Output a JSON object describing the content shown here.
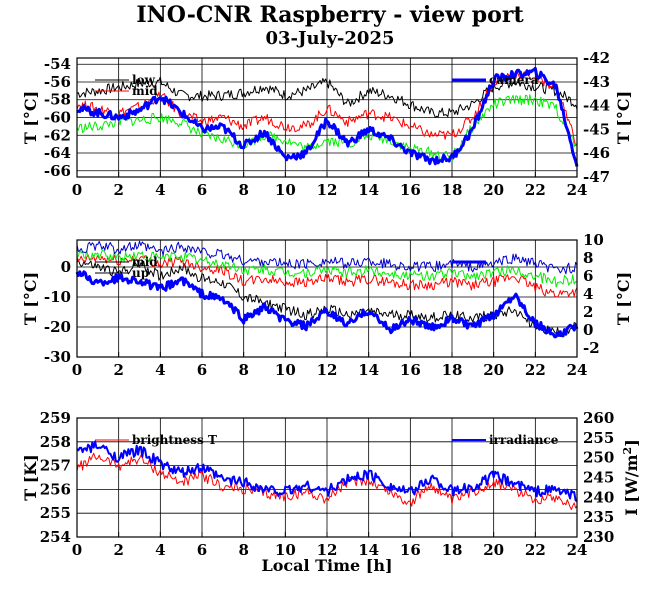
{
  "title": "INO-CNR Raspberry - view port",
  "subtitle": "03-July-2025",
  "chart_data": [
    {
      "type": "line",
      "x": [
        0,
        1,
        2,
        3,
        4,
        5,
        6,
        7,
        8,
        9,
        10,
        11,
        12,
        13,
        14,
        15,
        16,
        17,
        18,
        19,
        20,
        21,
        22,
        23,
        24
      ],
      "xlim": [
        0,
        24
      ],
      "xticks": [
        0,
        2,
        4,
        6,
        8,
        10,
        12,
        14,
        16,
        18,
        20,
        22,
        24
      ],
      "ylabel": "T [°C]",
      "ylim": [
        -66.7,
        -53.3
      ],
      "yticks": [
        -54,
        -56,
        -58,
        -60,
        -62,
        -64,
        -66
      ],
      "y2label": "T [°C]",
      "y2lim": [
        -47,
        -42
      ],
      "y2ticks": [
        -42,
        -43,
        -44,
        -45,
        -46,
        -47
      ],
      "grid": true,
      "legend_left": [
        "low",
        "mid"
      ],
      "legend_right": [
        "camera"
      ],
      "series": [
        {
          "name": "low",
          "axis": "left",
          "color": "#000000",
          "width": 1,
          "values": [
            -57.3,
            -57.0,
            -56.6,
            -56.2,
            -56.0,
            -57.5,
            -57.6,
            -57.5,
            -57.2,
            -56.5,
            -57.5,
            -57.0,
            -56.0,
            -58.5,
            -57.0,
            -57.5,
            -58.5,
            -59.5,
            -59.5,
            -58.5,
            -56.5,
            -56.0,
            -56.5,
            -57.0,
            -58.5
          ]
        },
        {
          "name": "mid",
          "axis": "left",
          "color": "#ff0000",
          "width": 1,
          "values": [
            -58.5,
            -59.0,
            -59.5,
            -58.8,
            -57.5,
            -59.5,
            -60.5,
            -60.0,
            -61.0,
            -60.0,
            -61.0,
            -61.0,
            -59.0,
            -60.5,
            -59.5,
            -60.0,
            -61.0,
            -62.0,
            -62.0,
            -60.0,
            -56.0,
            -55.0,
            -55.5,
            -56.5,
            -63.0
          ]
        },
        {
          "name": "",
          "axis": "left",
          "color": "#00ee00",
          "width": 1,
          "values": [
            -61.2,
            -61.0,
            -60.5,
            -60.3,
            -60.0,
            -60.5,
            -62.0,
            -62.5,
            -63.0,
            -62.0,
            -62.5,
            -63.5,
            -62.5,
            -63.0,
            -62.0,
            -62.5,
            -63.5,
            -64.0,
            -64.5,
            -61.0,
            -58.5,
            -58.0,
            -58.0,
            -59.0,
            -63.5
          ]
        },
        {
          "name": "camera",
          "axis": "right",
          "color": "#0000ff",
          "width": 3,
          "values": [
            -44.1,
            -44.3,
            -44.5,
            -44.2,
            -43.6,
            -44.3,
            -45.0,
            -44.9,
            -45.7,
            -45.1,
            -46.2,
            -46.0,
            -44.6,
            -45.6,
            -45.0,
            -45.4,
            -46.0,
            -46.3,
            -46.2,
            -45.0,
            -42.9,
            -42.7,
            -42.6,
            -43.2,
            -46.5
          ]
        }
      ]
    },
    {
      "type": "line",
      "x": [
        0,
        1,
        2,
        3,
        4,
        5,
        6,
        7,
        8,
        9,
        10,
        11,
        12,
        13,
        14,
        15,
        16,
        17,
        18,
        19,
        20,
        21,
        22,
        23,
        24
      ],
      "xlim": [
        0,
        24
      ],
      "xticks": [
        0,
        2,
        4,
        6,
        8,
        10,
        12,
        14,
        16,
        18,
        20,
        22,
        24
      ],
      "ylabel": "T [°C]",
      "ylim": [
        -30,
        9
      ],
      "yticks": [
        0,
        -10,
        -20,
        -30
      ],
      "y2label": "T [°C]",
      "y2lim": [
        -3,
        10
      ],
      "y2ticks": [
        10,
        8,
        6,
        4,
        2,
        0,
        -2
      ],
      "grid": true,
      "legend_left": [
        "mid",
        "up"
      ],
      "legend_right": [
        ""
      ],
      "series": [
        {
          "name": "up",
          "axis": "left",
          "color": "#000000",
          "width": 1,
          "values": [
            2,
            0,
            -2,
            1,
            -3,
            0,
            -4,
            -5,
            -10,
            -12,
            -14,
            -16,
            -14,
            -16,
            -15,
            -16,
            -16,
            -17,
            -16,
            -17,
            -16,
            -14,
            -20,
            -22,
            -20
          ]
        },
        {
          "name": "",
          "axis": "left",
          "color": "#ff0000",
          "width": 1,
          "values": [
            2,
            3,
            2,
            3,
            1,
            2,
            0,
            -1,
            -5,
            -4,
            -5,
            -5,
            -4,
            -5,
            -4,
            -5,
            -6,
            -6,
            -5,
            -6,
            -5,
            -3,
            -7,
            -9,
            -8
          ]
        },
        {
          "name": "",
          "axis": "left",
          "color": "#00ee00",
          "width": 1,
          "values": [
            4,
            4,
            3,
            4,
            3,
            4,
            2,
            1,
            -1,
            -1,
            -2,
            -2,
            -1,
            -2,
            -1,
            -2,
            -3,
            -3,
            -2,
            -3,
            -2,
            -1,
            -3,
            -5,
            -4
          ]
        },
        {
          "name": "",
          "axis": "left",
          "color": "#0000cc",
          "width": 1,
          "values": [
            6,
            7,
            6,
            7,
            5,
            7,
            5,
            4,
            2,
            2,
            1,
            1,
            2,
            1,
            2,
            1,
            0,
            0,
            1,
            0,
            1,
            3,
            1,
            -1,
            0
          ]
        },
        {
          "name": "",
          "axis": "right",
          "color": "#0000ff",
          "width": 3,
          "values": [
            6.5,
            5.2,
            5.8,
            5.5,
            4.5,
            5.6,
            4.0,
            3.4,
            1.2,
            2.5,
            1.0,
            0.4,
            2.0,
            0.6,
            2.2,
            0.0,
            1.2,
            0.2,
            1.3,
            0.3,
            1.6,
            4.0,
            0.8,
            -0.8,
            0.5
          ]
        }
      ]
    },
    {
      "type": "line",
      "x": [
        0,
        1,
        2,
        3,
        4,
        5,
        6,
        7,
        8,
        9,
        10,
        11,
        12,
        13,
        14,
        15,
        16,
        17,
        18,
        19,
        20,
        21,
        22,
        23,
        24
      ],
      "xlim": [
        0,
        24
      ],
      "xticks": [
        0,
        2,
        4,
        6,
        8,
        10,
        12,
        14,
        16,
        18,
        20,
        22,
        24
      ],
      "xlabel": "Local Time [h]",
      "ylabel": "T [K]",
      "ylim": [
        254,
        259
      ],
      "yticks": [
        259,
        258,
        257,
        256,
        255,
        254
      ],
      "y2label": "I [W/m2]",
      "y2lim": [
        230,
        260
      ],
      "y2ticks": [
        260,
        255,
        250,
        245,
        240,
        235,
        230
      ],
      "grid": true,
      "legend_left": [
        "brightness T"
      ],
      "legend_right": [
        "irradiance"
      ],
      "series": [
        {
          "name": "brightness T",
          "axis": "left",
          "color": "#ff0000",
          "width": 1,
          "values": [
            256.9,
            257.4,
            257.0,
            257.3,
            256.7,
            256.3,
            256.6,
            256.1,
            256.0,
            255.8,
            255.7,
            255.9,
            255.6,
            256.3,
            256.4,
            255.9,
            255.4,
            256.2,
            255.5,
            255.9,
            256.3,
            256.0,
            255.6,
            255.7,
            255.2
          ]
        },
        {
          "name": "irradiance",
          "axis": "right",
          "color": "#0000ff",
          "width": 2,
          "values": [
            251.5,
            253.0,
            250.0,
            252.0,
            248.5,
            246.0,
            247.5,
            244.5,
            244.0,
            242.0,
            241.5,
            243.0,
            241.5,
            244.5,
            246.0,
            243.0,
            241.0,
            245.0,
            241.5,
            242.5,
            245.5,
            243.5,
            241.5,
            242.0,
            240.0
          ]
        }
      ]
    }
  ]
}
